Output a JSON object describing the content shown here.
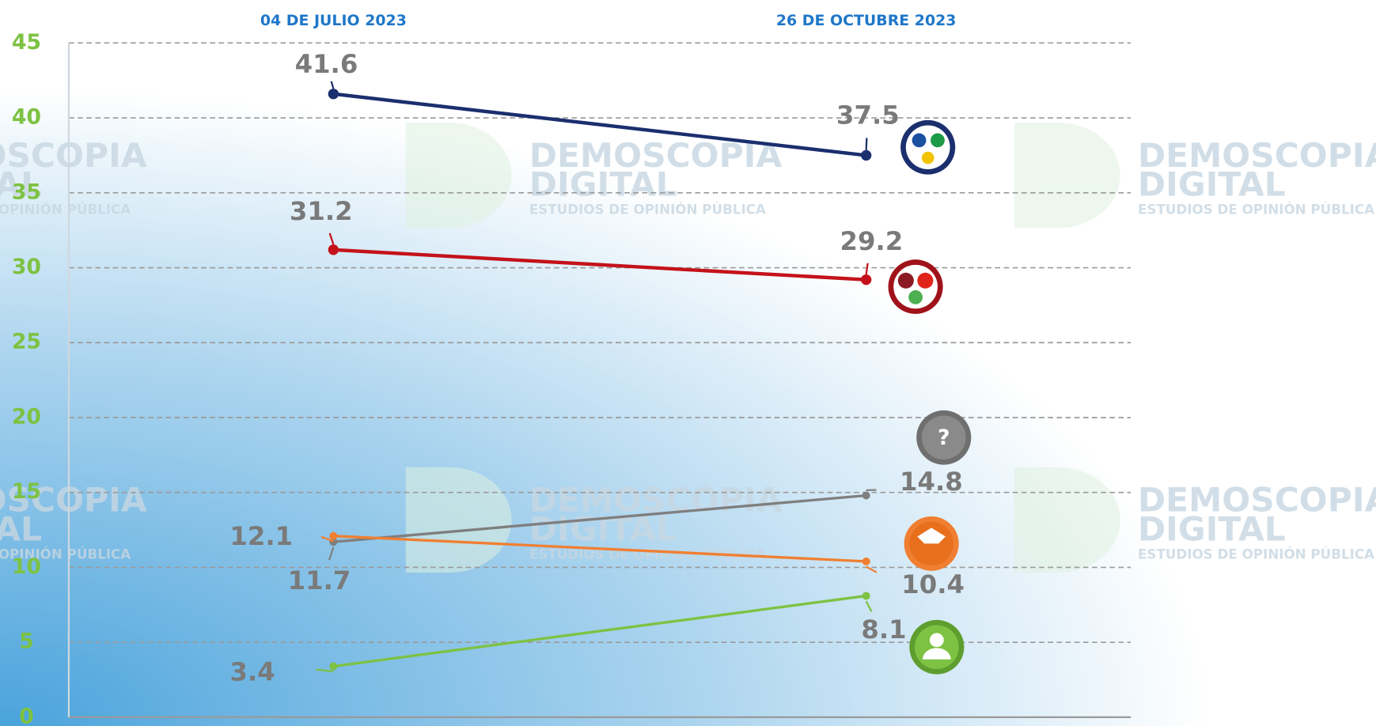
{
  "chart_data": {
    "type": "line",
    "categories": [
      "04 DE JULIO 2023",
      "26 DE OCTUBRE 2023"
    ],
    "series": [
      {
        "color": "#1b2f6e",
        "values": [
          41.6,
          37.5
        ]
      },
      {
        "color": "#c4121a",
        "values": [
          31.2,
          29.2
        ]
      },
      {
        "color": "#7f7f7f",
        "values": [
          11.7,
          14.8
        ]
      },
      {
        "color": "#f07f32",
        "values": [
          12.1,
          10.4
        ]
      },
      {
        "color": "#7dc242",
        "values": [
          3.4,
          8.1
        ]
      }
    ],
    "ylim": [
      0,
      45
    ],
    "yticks": [
      0,
      5,
      10,
      15,
      20,
      25,
      30,
      35,
      40,
      45
    ],
    "grid": true,
    "annotations": [
      "?"
    ],
    "watermark": {
      "name": "DEMOSCOPIA",
      "sub": "DIGITAL",
      "tagline": "ESTUDIOS DE OPINIÓN PÚBLICA"
    }
  }
}
